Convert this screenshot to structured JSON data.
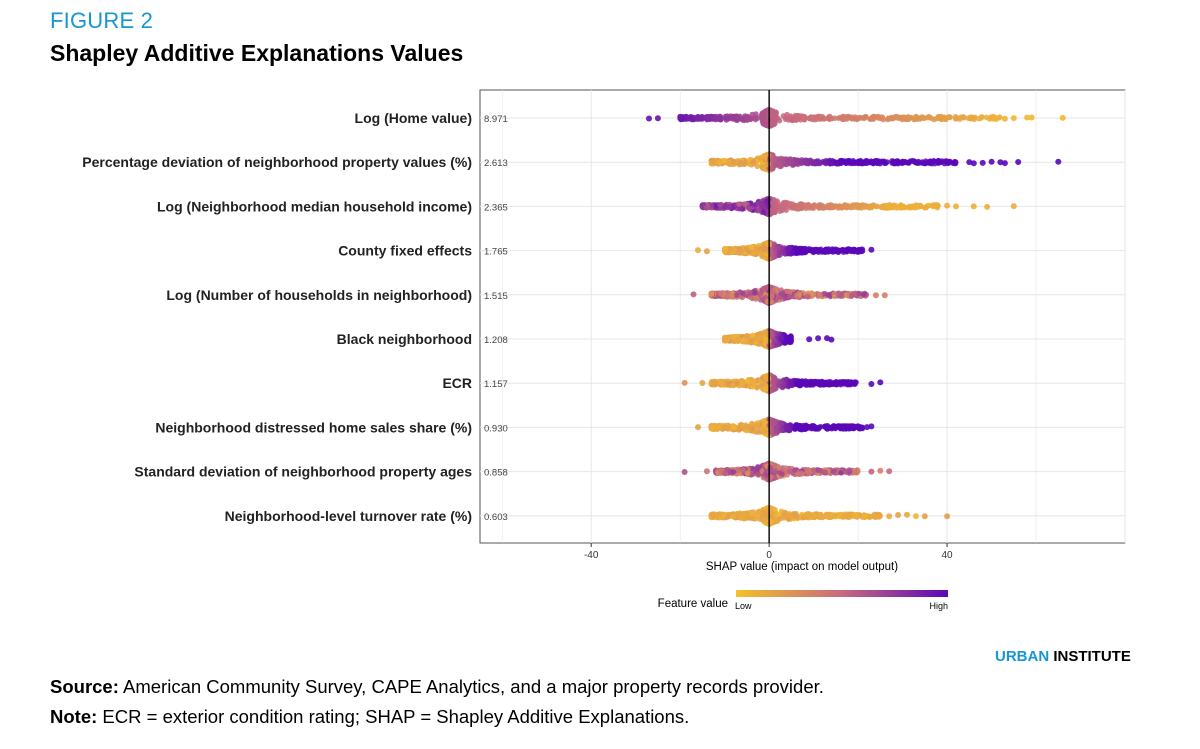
{
  "figure_label": "FIGURE 2",
  "figure_title": "Shapley Additive Explanations Values",
  "brand": {
    "part1": "URBAN",
    "part2": " INSTITUTE"
  },
  "footer": {
    "source_label": "Source:",
    "source_text": " American Community Survey, CAPE Analytics, and a major property records provider.",
    "note_label": "Note:",
    "note_text": " ECR = exterior condition rating; SHAP = Shapley Additive Explanations."
  },
  "colors": {
    "low": "#f5c02a",
    "mid": "#c86a7e",
    "high": "#5a07b8",
    "axis": "#000000",
    "grid": "#e6e6e6"
  },
  "chart_data": {
    "type": "scatter",
    "subtype": "shap-beeswarm",
    "title": "",
    "xlabel": "SHAP value (impact on model output)",
    "ylabel": "",
    "xlim": [
      -65,
      80
    ],
    "xticks": [
      -40,
      0,
      40
    ],
    "xtick_labels": [
      "-40",
      "0",
      "40"
    ],
    "grid": true,
    "legend": {
      "title": "Feature value",
      "low_label": "Low",
      "high_label": "High",
      "placement": "bottom-center"
    },
    "features": [
      {
        "name": "Log (Home value)",
        "mean_abs_shap": "8.971",
        "min": -27,
        "max": 66,
        "core": [
          -20,
          52
        ],
        "color_trend": "neg-high",
        "outliers": [
          -27,
          -25,
          53,
          55,
          58,
          59,
          66
        ]
      },
      {
        "name": "Percentage deviation of neighborhood property values (%)",
        "mean_abs_shap": "2.613",
        "min": -13,
        "max": 65,
        "core": [
          -13,
          42
        ],
        "color_trend": "pos-high",
        "outliers": [
          45,
          46,
          48,
          50,
          52,
          53,
          56,
          65
        ]
      },
      {
        "name": "Log (Neighborhood median household income)",
        "mean_abs_shap": "2.365",
        "min": -15,
        "max": 55,
        "core": [
          -15,
          38
        ],
        "color_trend": "pos-low",
        "outliers": [
          40,
          42,
          46,
          49,
          55
        ]
      },
      {
        "name": "County fixed effects",
        "mean_abs_shap": "1.765",
        "min": -16,
        "max": 23,
        "core": [
          -10,
          21
        ],
        "color_trend": "pos-high",
        "outliers": [
          -16,
          -14,
          23
        ]
      },
      {
        "name": "Log (Number of households in neighborhood)",
        "mean_abs_shap": "1.515",
        "min": -17,
        "max": 26,
        "core": [
          -13,
          22
        ],
        "color_trend": "mixed",
        "outliers": [
          -17,
          24,
          26
        ]
      },
      {
        "name": "Black neighborhood",
        "mean_abs_shap": "1.208",
        "min": -10,
        "max": 14,
        "core": [
          -10,
          5
        ],
        "color_trend": "pos-high",
        "outliers": [
          9,
          11,
          13,
          14
        ]
      },
      {
        "name": "ECR",
        "mean_abs_shap": "1.157",
        "min": -19,
        "max": 25,
        "core": [
          -13,
          20
        ],
        "color_trend": "pos-high",
        "outliers": [
          -19,
          -15,
          17,
          18,
          23,
          25
        ]
      },
      {
        "name": "Neighborhood distressed home sales share (%)",
        "mean_abs_shap": "0.930",
        "min": -16,
        "max": 23,
        "core": [
          -13,
          21
        ],
        "color_trend": "pos-high",
        "outliers": [
          -16,
          22,
          23
        ]
      },
      {
        "name": "Standard deviation of neighborhood property ages",
        "mean_abs_shap": "0.858",
        "min": -19,
        "max": 27,
        "core": [
          -12,
          20
        ],
        "color_trend": "mixed",
        "outliers": [
          -19,
          -14,
          23,
          25,
          27
        ]
      },
      {
        "name": "Neighborhood-level turnover rate (%)",
        "mean_abs_shap": "0.603",
        "min": -13,
        "max": 40,
        "core": [
          -13,
          25
        ],
        "color_trend": "low",
        "outliers": [
          27,
          29,
          31,
          33,
          35,
          40
        ]
      }
    ]
  }
}
